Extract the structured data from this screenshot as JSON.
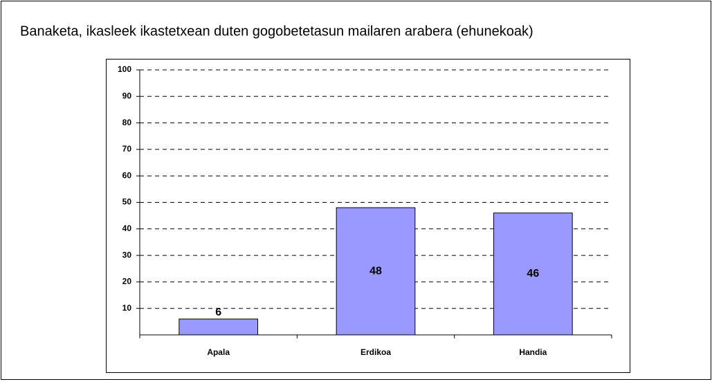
{
  "chart_data": {
    "type": "bar",
    "title": "Banaketa, ikasleek ikastetxean duten gogobetetasun mailaren arabera (ehunekoak)",
    "categories": [
      "Apala",
      "Erdikoa",
      "Handia"
    ],
    "values": [
      6,
      48,
      46
    ],
    "color": "#9999ff",
    "ylim": [
      0,
      100
    ],
    "yticks": [
      10,
      20,
      30,
      40,
      50,
      60,
      70,
      80,
      90,
      100
    ],
    "grid": true
  }
}
